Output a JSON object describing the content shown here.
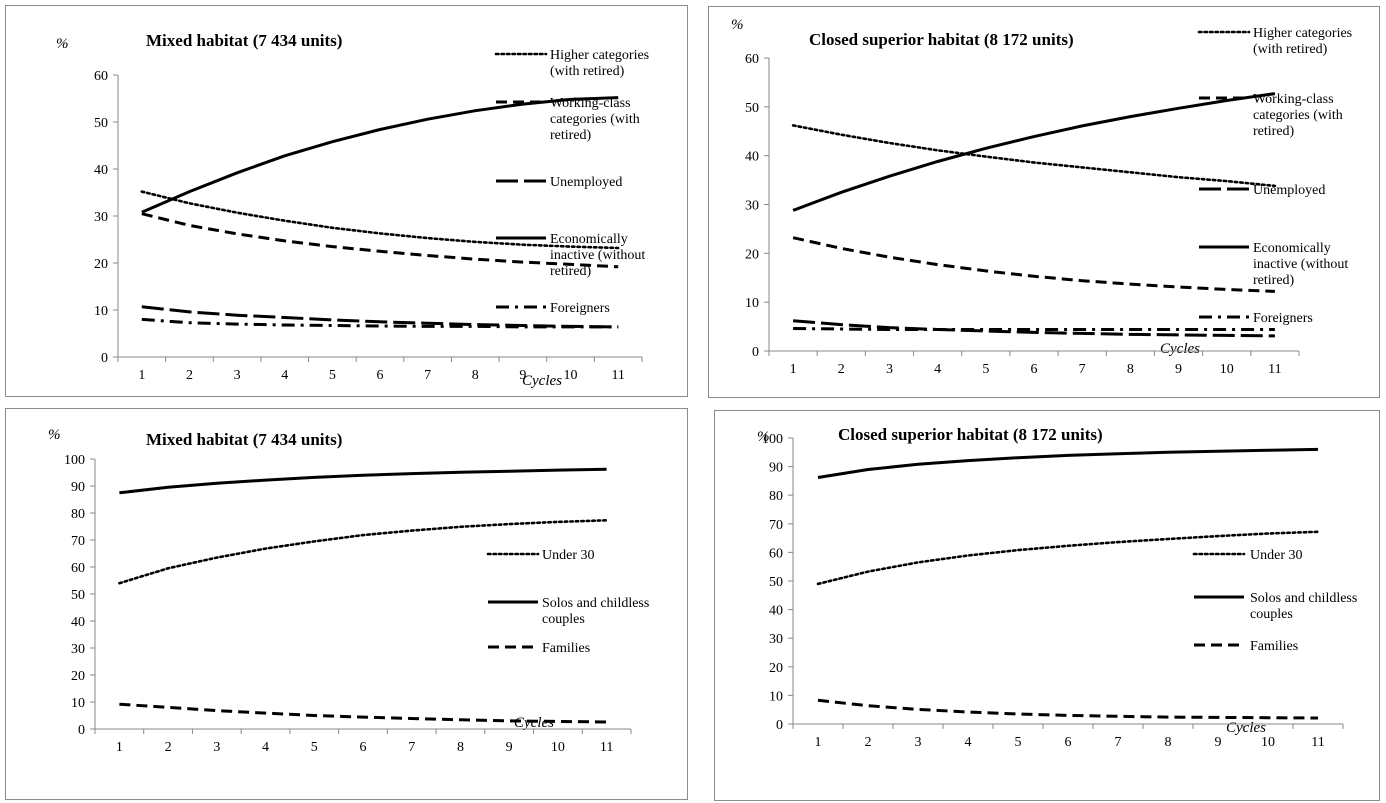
{
  "chart_data": [
    {
      "type": "line",
      "title": "Mixed habitat  (7 434 units)",
      "ylabel": "%",
      "xlabel": "Cycles",
      "ylim": [
        0,
        60
      ],
      "yticks": [
        0,
        10,
        20,
        30,
        40,
        50,
        60
      ],
      "x": [
        "1",
        "2",
        "3",
        "4",
        "5",
        "6",
        "7",
        "8",
        "9",
        "10",
        "11"
      ],
      "legend_position": "right",
      "series": [
        {
          "name": "Higher categories (with retired)",
          "legend_lines": [
            "Higher categories",
            "(with retired)"
          ],
          "style": "dotted",
          "values": [
            35.2,
            32.7,
            30.7,
            29.0,
            27.5,
            26.3,
            25.3,
            24.5,
            23.9,
            23.5,
            23.2
          ]
        },
        {
          "name": "Working-class categories (with retired)",
          "legend_lines": [
            "Working-class",
            "categories (with",
            "retired)"
          ],
          "style": "dashed",
          "values": [
            30.5,
            28.0,
            26.2,
            24.7,
            23.5,
            22.5,
            21.6,
            20.8,
            20.2,
            19.7,
            19.2
          ]
        },
        {
          "name": "Unemployed",
          "legend_lines": [
            "Unemployed"
          ],
          "style": "longdash",
          "values": [
            10.7,
            9.6,
            8.9,
            8.4,
            7.9,
            7.5,
            7.2,
            6.9,
            6.7,
            6.5,
            6.4
          ]
        },
        {
          "name": "Economically inactive (without retired)",
          "legend_lines": [
            "Economically",
            "inactive (without",
            "retired)"
          ],
          "style": "solid",
          "values": [
            30.8,
            35.2,
            39.2,
            42.8,
            45.8,
            48.4,
            50.6,
            52.4,
            53.8,
            54.8,
            55.2
          ]
        },
        {
          "name": "Foreigners",
          "legend_lines": [
            "Foreigners"
          ],
          "style": "dashdot",
          "values": [
            8.0,
            7.3,
            7.0,
            6.8,
            6.7,
            6.6,
            6.5,
            6.5,
            6.4,
            6.4,
            6.4
          ]
        }
      ]
    },
    {
      "type": "line",
      "title": "Closed superior habitat  (8 172 units)",
      "ylabel": "%",
      "xlabel": "Cycles",
      "ylim": [
        0,
        60
      ],
      "yticks": [
        0,
        10,
        20,
        30,
        40,
        50,
        60
      ],
      "x": [
        "1",
        "2",
        "3",
        "4",
        "5",
        "6",
        "7",
        "8",
        "9",
        "10",
        "11"
      ],
      "legend_position": "right",
      "series": [
        {
          "name": "Higher categories (with retired)",
          "legend_lines": [
            "Higher categories",
            "(with retired)"
          ],
          "style": "dotted",
          "values": [
            46.2,
            44.3,
            42.6,
            41.1,
            39.8,
            38.6,
            37.6,
            36.6,
            35.6,
            34.8,
            33.8
          ]
        },
        {
          "name": "Working-class categories (with retired)",
          "legend_lines": [
            "Working-class",
            "categories (with",
            "retired)"
          ],
          "style": "dashed",
          "values": [
            23.2,
            21.0,
            19.2,
            17.7,
            16.4,
            15.3,
            14.4,
            13.7,
            13.1,
            12.6,
            12.2
          ]
        },
        {
          "name": "Unemployed",
          "legend_lines": [
            "Unemployed"
          ],
          "style": "longdash",
          "values": [
            6.2,
            5.4,
            4.8,
            4.4,
            4.1,
            3.8,
            3.6,
            3.4,
            3.3,
            3.2,
            3.1
          ]
        },
        {
          "name": "Economically inactive (without retired)",
          "legend_lines": [
            "Economically",
            "inactive (without",
            "retired)"
          ],
          "style": "solid",
          "values": [
            28.8,
            32.5,
            35.8,
            38.8,
            41.5,
            43.9,
            46.1,
            48.0,
            49.7,
            51.3,
            52.7
          ]
        },
        {
          "name": "Foreigners",
          "legend_lines": [
            "Foreigners"
          ],
          "style": "dashdot",
          "values": [
            4.6,
            4.5,
            4.4,
            4.4,
            4.4,
            4.4,
            4.4,
            4.4,
            4.4,
            4.4,
            4.4
          ]
        }
      ]
    },
    {
      "type": "line",
      "title": "Mixed habitat  (7 434 units)",
      "ylabel": "%",
      "xlabel": "Cycles",
      "ylim": [
        0,
        100
      ],
      "yticks": [
        0,
        10,
        20,
        30,
        40,
        50,
        60,
        70,
        80,
        90,
        100
      ],
      "x": [
        "1",
        "2",
        "3",
        "4",
        "5",
        "6",
        "7",
        "8",
        "9",
        "10",
        "11"
      ],
      "legend_position": "right",
      "series": [
        {
          "name": "Under 30",
          "legend_lines": [
            "Under 30"
          ],
          "style": "dotted",
          "values": [
            54.0,
            59.5,
            63.5,
            66.8,
            69.5,
            71.8,
            73.5,
            74.9,
            75.9,
            76.7,
            77.3
          ]
        },
        {
          "name": "Solos and childless couples",
          "legend_lines": [
            "Solos and childless",
            "couples"
          ],
          "style": "solid",
          "values": [
            87.5,
            89.5,
            91.0,
            92.2,
            93.2,
            94.0,
            94.6,
            95.1,
            95.5,
            95.9,
            96.2
          ]
        },
        {
          "name": "Families",
          "legend_lines": [
            "Families"
          ],
          "style": "dashed",
          "values": [
            9.2,
            8.0,
            6.8,
            5.9,
            5.0,
            4.4,
            3.9,
            3.4,
            3.0,
            2.8,
            2.6
          ]
        }
      ]
    },
    {
      "type": "line",
      "title": "Closed superior habitat  (8 172 units)",
      "ylabel": "%",
      "xlabel": "Cycles",
      "ylim": [
        0,
        100
      ],
      "yticks": [
        0,
        10,
        20,
        30,
        40,
        50,
        60,
        70,
        80,
        90,
        100
      ],
      "x": [
        "1",
        "2",
        "3",
        "4",
        "5",
        "6",
        "7",
        "8",
        "9",
        "10",
        "11"
      ],
      "legend_position": "right",
      "series": [
        {
          "name": "Under 30",
          "legend_lines": [
            "Under 30"
          ],
          "style": "dotted",
          "values": [
            49.0,
            53.3,
            56.5,
            58.9,
            60.8,
            62.3,
            63.6,
            64.7,
            65.7,
            66.6,
            67.2
          ]
        },
        {
          "name": "Solos and childless couples",
          "legend_lines": [
            "Solos and childless",
            "couples"
          ],
          "style": "solid",
          "values": [
            86.2,
            89.0,
            90.8,
            92.1,
            93.1,
            93.9,
            94.5,
            95.0,
            95.4,
            95.7,
            96.0
          ]
        },
        {
          "name": "Families",
          "legend_lines": [
            "Families"
          ],
          "style": "dashed",
          "values": [
            8.3,
            6.4,
            5.1,
            4.2,
            3.5,
            3.0,
            2.7,
            2.4,
            2.3,
            2.2,
            2.1
          ]
        }
      ]
    }
  ]
}
